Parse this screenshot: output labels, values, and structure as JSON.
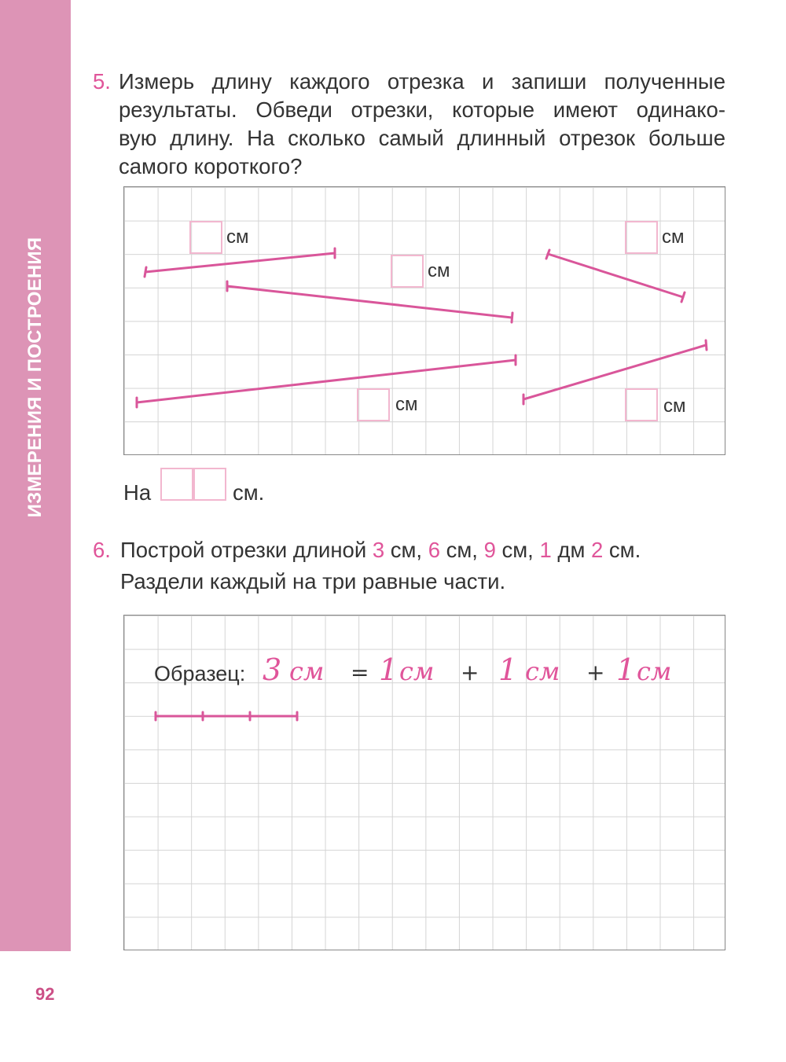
{
  "sidebar": {
    "title": "ИЗМЕРЕНИЯ И ПОСТРОЕНИЯ"
  },
  "page_number": "92",
  "task5": {
    "number": "5.",
    "lines": [
      "Измерь длину каждого отрезка и запиши полученные",
      "результаты. Обведи отрезки, которые имеют одинако-",
      "вую длину. На сколько самый длинный отрезок больше",
      "самого короткого?"
    ],
    "unit": "см",
    "answer_prefix": "На",
    "answer_suffix": "см.",
    "segment_color": "#d9569a"
  },
  "task6": {
    "number": "6.",
    "line1_parts": [
      "Построй отрезки длиной ",
      "3",
      " см, ",
      "6",
      " см, ",
      "9",
      " см, ",
      "1",
      " дм ",
      "2",
      " см."
    ],
    "line2": "Раздели каждый на три равные части.",
    "sample_label": "Образец:",
    "sample_equation": [
      "3",
      "см",
      "=",
      "1",
      "см",
      "+",
      "1",
      "см",
      "+",
      "1",
      "см"
    ],
    "sample_segment_parts": 3
  },
  "colors": {
    "sidebar": "#dd94b6",
    "accent": "#e0559a",
    "grid_line": "#d4d4d4",
    "box_border": "#f2b7cf"
  }
}
